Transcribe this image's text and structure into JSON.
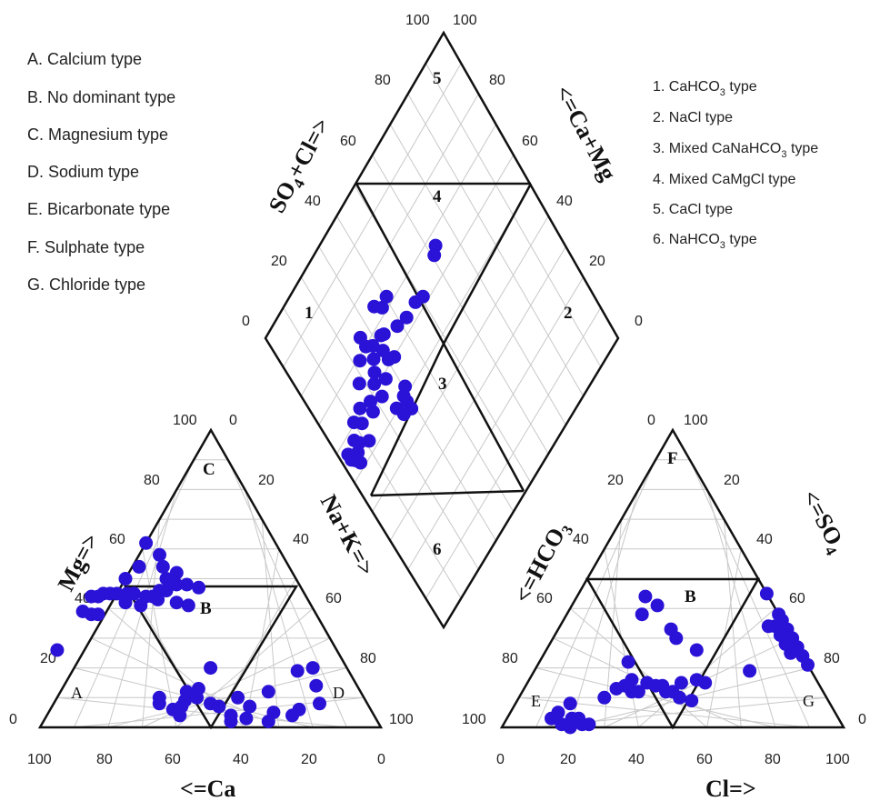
{
  "left_legend": [
    "A. Calcium type",
    "B. No dominant type",
    "C. Magnesium type",
    "D. Sodium type",
    "E. Bicarbonate type",
    "F. Sulphate type",
    "G. Chloride type"
  ],
  "right_legend": [
    {
      "pre": "1. CaHCO",
      "sub": "3",
      "post": " type"
    },
    {
      "pre": "2. NaCl type",
      "sub": "",
      "post": ""
    },
    {
      "pre": "3. Mixed CaNaHCO",
      "sub": "3",
      "post": " type"
    },
    {
      "pre": "4. Mixed CaMgCl type",
      "sub": "",
      "post": ""
    },
    {
      "pre": "5. CaCl type",
      "sub": "",
      "post": ""
    },
    {
      "pre": "6. NaHCO",
      "sub": "3",
      "post": " type"
    }
  ],
  "axis_labels": {
    "cation_bottom": "<=Ca",
    "cation_left": "Mg=>",
    "cation_right": "Na+K=>",
    "anion_bottom": "Cl=>",
    "anion_left": "<=HCO",
    "anion_left_sub": "3",
    "anion_right": "<=SO",
    "anion_right_sub": "4",
    "diamond_left_a": "SO",
    "diamond_left_sub": "4",
    "diamond_left_b": "+Cl=>",
    "diamond_right": "<=Ca+Mg"
  },
  "zone_labels": {
    "cation": [
      "A",
      "B",
      "C",
      "D"
    ],
    "anion": [
      "B",
      "E",
      "F",
      "G"
    ],
    "diamond": [
      "1",
      "2",
      "3",
      "4",
      "5",
      "6"
    ]
  },
  "ticks": {
    "cation_bottom": [
      "100",
      "80",
      "60",
      "40",
      "20",
      "0"
    ],
    "cation_left": [
      "0",
      "20",
      "40",
      "60",
      "80",
      "100"
    ],
    "cation_right": [
      "0",
      "20",
      "40",
      "60",
      "80",
      "100"
    ],
    "anion_bottom": [
      "0",
      "20",
      "40",
      "60",
      "80",
      "100"
    ],
    "anion_left": [
      "100",
      "80",
      "60",
      "40",
      "20",
      "0"
    ],
    "anion_right": [
      "100",
      "20",
      "40",
      "60",
      "80",
      "0"
    ],
    "diamond_left": [
      "0",
      "20",
      "40",
      "60",
      "80",
      "100"
    ],
    "diamond_right": [
      "0",
      "20",
      "40",
      "60",
      "80",
      "100"
    ]
  },
  "chart_data": {
    "type": "scatter",
    "title": "",
    "marker_color": "#2a12d6",
    "cation_points": [
      {
        "ca": 38,
        "mg": 62
      },
      {
        "ca": 36,
        "mg": 58
      },
      {
        "ca": 37,
        "mg": 54
      },
      {
        "ca": 34,
        "mg": 52
      },
      {
        "ca": 38,
        "mg": 50
      },
      {
        "ca": 36,
        "mg": 48
      },
      {
        "ca": 40,
        "mg": 46
      },
      {
        "ca": 42,
        "mg": 46
      },
      {
        "ca": 45,
        "mg": 44
      },
      {
        "ca": 47,
        "mg": 44
      },
      {
        "ca": 50,
        "mg": 45
      },
      {
        "ca": 52,
        "mg": 45
      },
      {
        "ca": 55,
        "mg": 45
      },
      {
        "ca": 57,
        "mg": 45
      },
      {
        "ca": 59,
        "mg": 45
      },
      {
        "ca": 61,
        "mg": 44
      },
      {
        "ca": 63,
        "mg": 44
      },
      {
        "ca": 54,
        "mg": 42
      },
      {
        "ca": 50,
        "mg": 41
      },
      {
        "ca": 44,
        "mg": 43
      },
      {
        "ca": 39,
        "mg": 42
      },
      {
        "ca": 33,
        "mg": 48
      },
      {
        "ca": 30,
        "mg": 47
      },
      {
        "ca": 36,
        "mg": 41
      },
      {
        "ca": 68,
        "mg": 39
      },
      {
        "ca": 66,
        "mg": 38
      },
      {
        "ca": 64,
        "mg": 38
      },
      {
        "ca": 82,
        "mg": 26
      },
      {
        "ca": 60,
        "mg": 10
      },
      {
        "ca": 61,
        "mg": 8
      },
      {
        "ca": 58,
        "mg": 6
      },
      {
        "ca": 55,
        "mg": 7
      },
      {
        "ca": 57,
        "mg": 4
      },
      {
        "ca": 53,
        "mg": 9
      },
      {
        "ca": 51,
        "mg": 12
      },
      {
        "ca": 47,
        "mg": 13
      },
      {
        "ca": 49,
        "mg": 10
      },
      {
        "ca": 46,
        "mg": 8
      },
      {
        "ca": 44,
        "mg": 7
      },
      {
        "ca": 42,
        "mg": 4
      },
      {
        "ca": 43,
        "mg": 2
      },
      {
        "ca": 38,
        "mg": 3
      },
      {
        "ca": 35,
        "mg": 7
      },
      {
        "ca": 32,
        "mg": 2
      },
      {
        "ca": 27,
        "mg": 12
      },
      {
        "ca": 29,
        "mg": 5
      },
      {
        "ca": 21,
        "mg": 6
      },
      {
        "ca": 24,
        "mg": 4
      },
      {
        "ca": 14,
        "mg": 8
      },
      {
        "ca": 12,
        "mg": 14
      },
      {
        "ca": 15,
        "mg": 19
      },
      {
        "ca": 10,
        "mg": 20
      },
      {
        "ca": 40,
        "mg": 20
      },
      {
        "ca": 37,
        "mg": 10
      },
      {
        "ca": 50,
        "mg": 50
      },
      {
        "ca": 44,
        "mg": 54
      }
    ],
    "anion_points": [
      {
        "cl": 25,
        "hco3": 65
      },
      {
        "cl": 27,
        "hco3": 60
      },
      {
        "cl": 29,
        "hco3": 57
      },
      {
        "cl": 32,
        "hco3": 56
      },
      {
        "cl": 34,
        "hco3": 54
      },
      {
        "cl": 30,
        "hco3": 54
      },
      {
        "cl": 26,
        "hco3": 52
      },
      {
        "cl": 35,
        "hco3": 50
      },
      {
        "cl": 38,
        "hco3": 48
      },
      {
        "cl": 40,
        "hco3": 46
      },
      {
        "cl": 42,
        "hco3": 46
      },
      {
        "cl": 44,
        "hco3": 44
      },
      {
        "cl": 47,
        "hco3": 43
      },
      {
        "cl": 22,
        "hco3": 40
      },
      {
        "cl": 20,
        "hco3": 36
      },
      {
        "cl": 25,
        "hco3": 34
      },
      {
        "cl": 33,
        "hco3": 34
      },
      {
        "cl": 36,
        "hco3": 34
      },
      {
        "cl": 44,
        "hco3": 30
      },
      {
        "cl": 49,
        "hco3": 35
      },
      {
        "cl": 45,
        "hco3": 40
      },
      {
        "cl": 51,
        "hco3": 40
      },
      {
        "cl": 52,
        "hco3": 33
      },
      {
        "cl": 13,
        "hco3": 84
      },
      {
        "cl": 14,
        "hco3": 81
      },
      {
        "cl": 17,
        "hco3": 82
      },
      {
        "cl": 19,
        "hco3": 78
      },
      {
        "cl": 21,
        "hco3": 76
      },
      {
        "cl": 16,
        "hco3": 76
      },
      {
        "cl": 20,
        "hco3": 80
      },
      {
        "cl": 23,
        "hco3": 76
      },
      {
        "cl": 25,
        "hco3": 74
      },
      {
        "cl": 55,
        "hco3": 0
      },
      {
        "cl": 62,
        "hco3": 0
      },
      {
        "cl": 64,
        "hco3": 0
      },
      {
        "cl": 67,
        "hco3": 0
      },
      {
        "cl": 70,
        "hco3": 0
      },
      {
        "cl": 73,
        "hco3": 0
      },
      {
        "cl": 76,
        "hco3": 0
      },
      {
        "cl": 79,
        "hco3": 0
      },
      {
        "cl": 63,
        "hco3": 3
      },
      {
        "cl": 66,
        "hco3": 3
      },
      {
        "cl": 69,
        "hco3": 3
      },
      {
        "cl": 72,
        "hco3": 3
      },
      {
        "cl": 61,
        "hco3": 5
      },
      {
        "cl": 63,
        "hco3": 18
      }
    ],
    "diamond_points": [
      {
        "caMg": 46,
        "so4Cl": 62
      },
      {
        "caMg": 44,
        "so4Cl": 60
      },
      {
        "caMg": 38,
        "so4Cl": 50
      },
      {
        "caMg": 40,
        "so4Cl": 47
      },
      {
        "caMg": 40,
        "so4Cl": 42
      },
      {
        "caMg": 42,
        "so4Cl": 38
      },
      {
        "caMg": 55,
        "so4Cl": 40
      },
      {
        "caMg": 54,
        "so4Cl": 37
      },
      {
        "caMg": 47,
        "so4Cl": 32
      },
      {
        "caMg": 48,
        "so4Cl": 28
      },
      {
        "caMg": 51,
        "so4Cl": 26
      },
      {
        "caMg": 56,
        "so4Cl": 26
      },
      {
        "caMg": 44,
        "so4Cl": 26
      },
      {
        "caMg": 37,
        "so4Cl": 22
      },
      {
        "caMg": 30,
        "so4Cl": 22
      },
      {
        "caMg": 30,
        "so4Cl": 17
      },
      {
        "caMg": 34,
        "so4Cl": 18
      },
      {
        "caMg": 37,
        "so4Cl": 14
      },
      {
        "caMg": 32,
        "so4Cl": 12
      },
      {
        "caMg": 28,
        "so4Cl": 8
      },
      {
        "caMg": 31,
        "so4Cl": 7
      },
      {
        "caMg": 24,
        "so4Cl": 11
      },
      {
        "caMg": 26,
        "so4Cl": 6
      },
      {
        "caMg": 25,
        "so4Cl": 4
      },
      {
        "caMg": 27,
        "so4Cl": 3
      },
      {
        "caMg": 22,
        "so4Cl": 5
      },
      {
        "caMg": 30,
        "so4Cl": 3
      },
      {
        "caMg": 20,
        "so4Cl": 24
      },
      {
        "caMg": 20,
        "so4Cl": 28
      },
      {
        "caMg": 17,
        "so4Cl": 28
      },
      {
        "caMg": 22,
        "so4Cl": 30
      },
      {
        "caMg": 15,
        "so4Cl": 25
      },
      {
        "caMg": 13,
        "so4Cl": 28
      },
      {
        "caMg": 40,
        "so4Cl": 24
      },
      {
        "caMg": 37,
        "so4Cl": 30
      },
      {
        "caMg": 35,
        "so4Cl": 32
      },
      {
        "caMg": 42,
        "so4Cl": 30
      },
      {
        "caMg": 46,
        "so4Cl": 33
      },
      {
        "caMg": 33,
        "so4Cl": 26
      },
      {
        "caMg": 58,
        "so4Cl": 35
      },
      {
        "caMg": 50,
        "so4Cl": 22
      },
      {
        "caMg": 44,
        "so4Cl": 18
      },
      {
        "caMg": 36,
        "so4Cl": 10
      }
    ]
  }
}
